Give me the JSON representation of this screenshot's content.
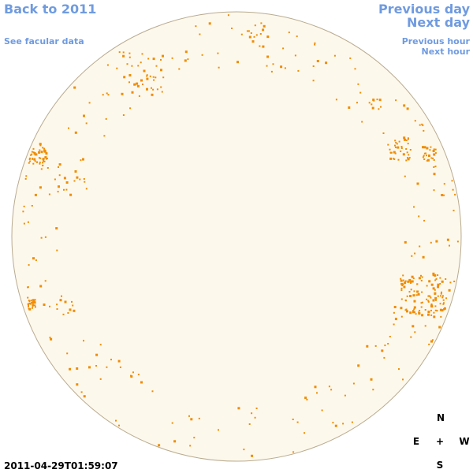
{
  "nav": {
    "back": "Back to 2011",
    "previous_day": "Previous day",
    "next_day": "Next day",
    "facular": "See facular data",
    "previous_hour": "Previous hour",
    "next_hour": "Next hour"
  },
  "timestamp": "2011-04-29T01:59:07",
  "compass": {
    "north": "N",
    "east": "E",
    "center": "+",
    "west": "W",
    "south": "S"
  }
}
